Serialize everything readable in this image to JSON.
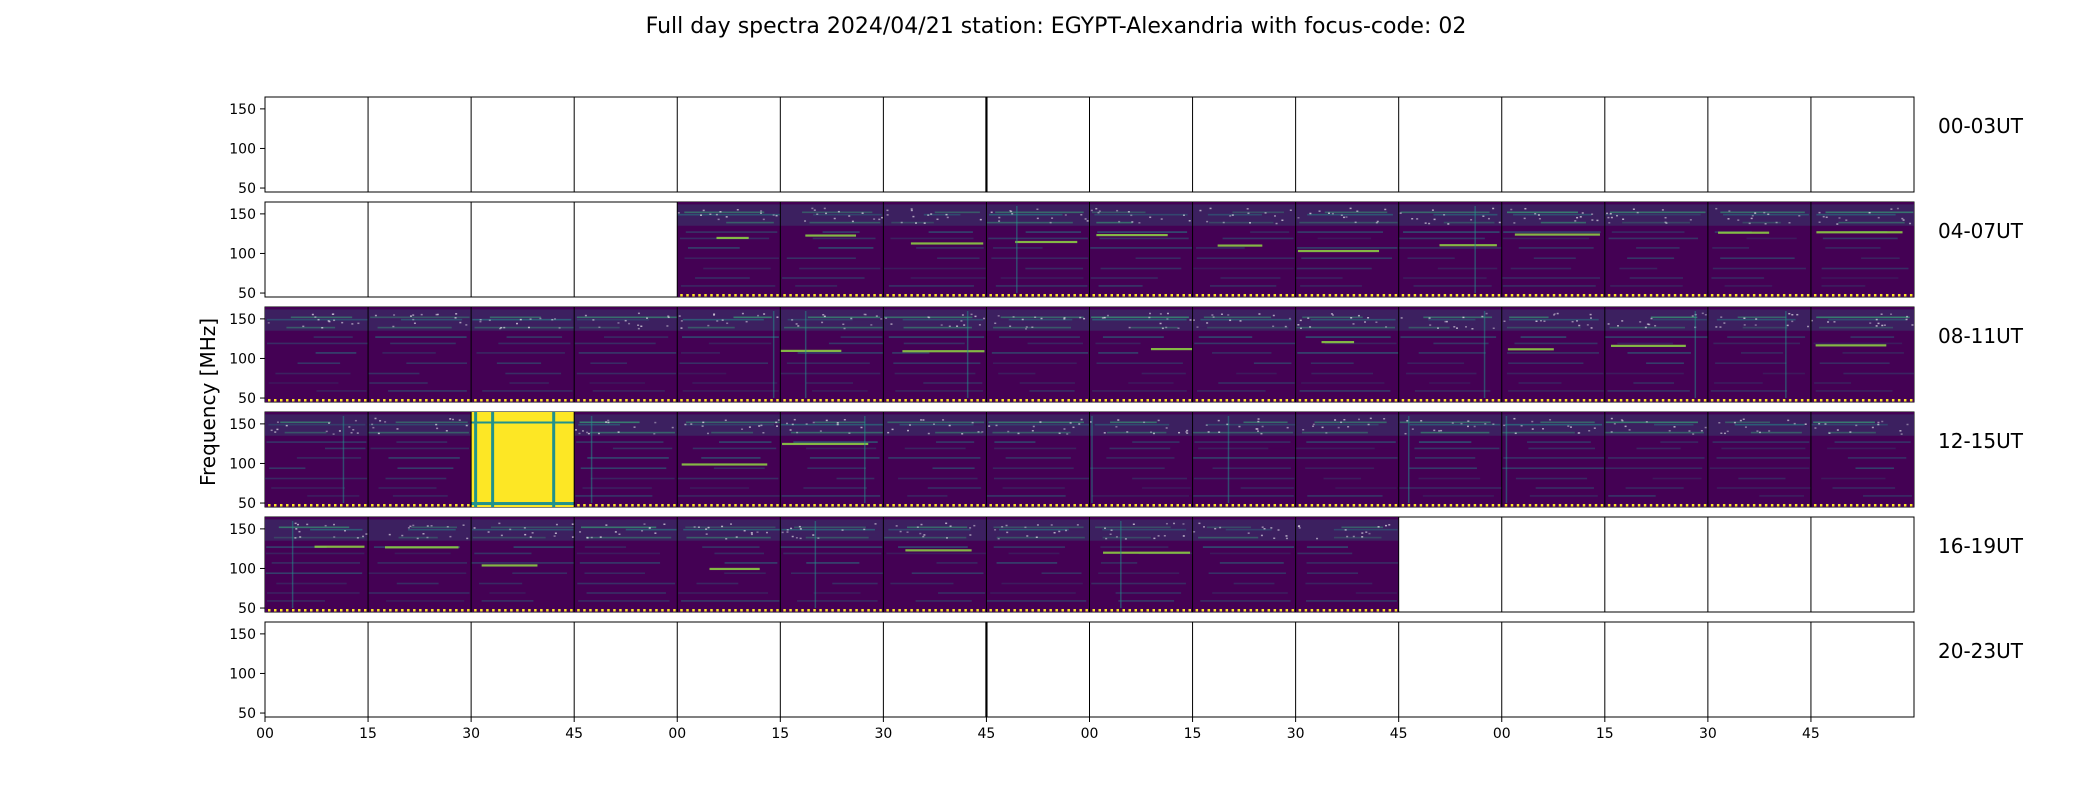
{
  "chart_data": {
    "type": "heatmap",
    "title": "Full day spectra 2024/04/21 station: EGYPT-Alexandria with focus-code: 02",
    "ylabel": "Frequency [MHz]",
    "ylim": [
      45,
      165
    ],
    "yticks": [
      "50",
      "100",
      "150"
    ],
    "xticks": [
      "00",
      "15",
      "30",
      "45",
      "00",
      "15",
      "30",
      "45",
      "00",
      "15",
      "30",
      "45",
      "00",
      "15",
      "30",
      "45"
    ],
    "panels_per_row": 16,
    "panel_minutes": 15,
    "colormap": "viridis",
    "rows": [
      {
        "label": "00-03UT",
        "data_panels": []
      },
      {
        "label": "04-07UT",
        "data_panels": [
          4,
          5,
          6,
          7,
          8,
          9,
          10,
          11,
          12,
          13,
          14,
          15
        ]
      },
      {
        "label": "08-11UT",
        "data_panels": [
          0,
          1,
          2,
          3,
          4,
          5,
          6,
          7,
          8,
          9,
          10,
          11,
          12,
          13,
          14,
          15
        ]
      },
      {
        "label": "12-15UT",
        "data_panels": [
          0,
          1,
          2,
          3,
          4,
          5,
          6,
          7,
          8,
          9,
          10,
          11,
          12,
          13,
          14,
          15
        ],
        "saturated_panels": [
          2
        ]
      },
      {
        "label": "16-19UT",
        "data_panels": [
          0,
          1,
          2,
          3,
          4,
          5,
          6,
          7,
          8,
          9,
          10
        ]
      },
      {
        "label": "20-23UT",
        "data_panels": []
      }
    ],
    "colors": {
      "background": "#440154",
      "band_bright": "#90d743",
      "band_mid": "#35b779",
      "band_low": "#21918c",
      "saturated": "#fde725",
      "marker_dot": "#fde725"
    }
  }
}
